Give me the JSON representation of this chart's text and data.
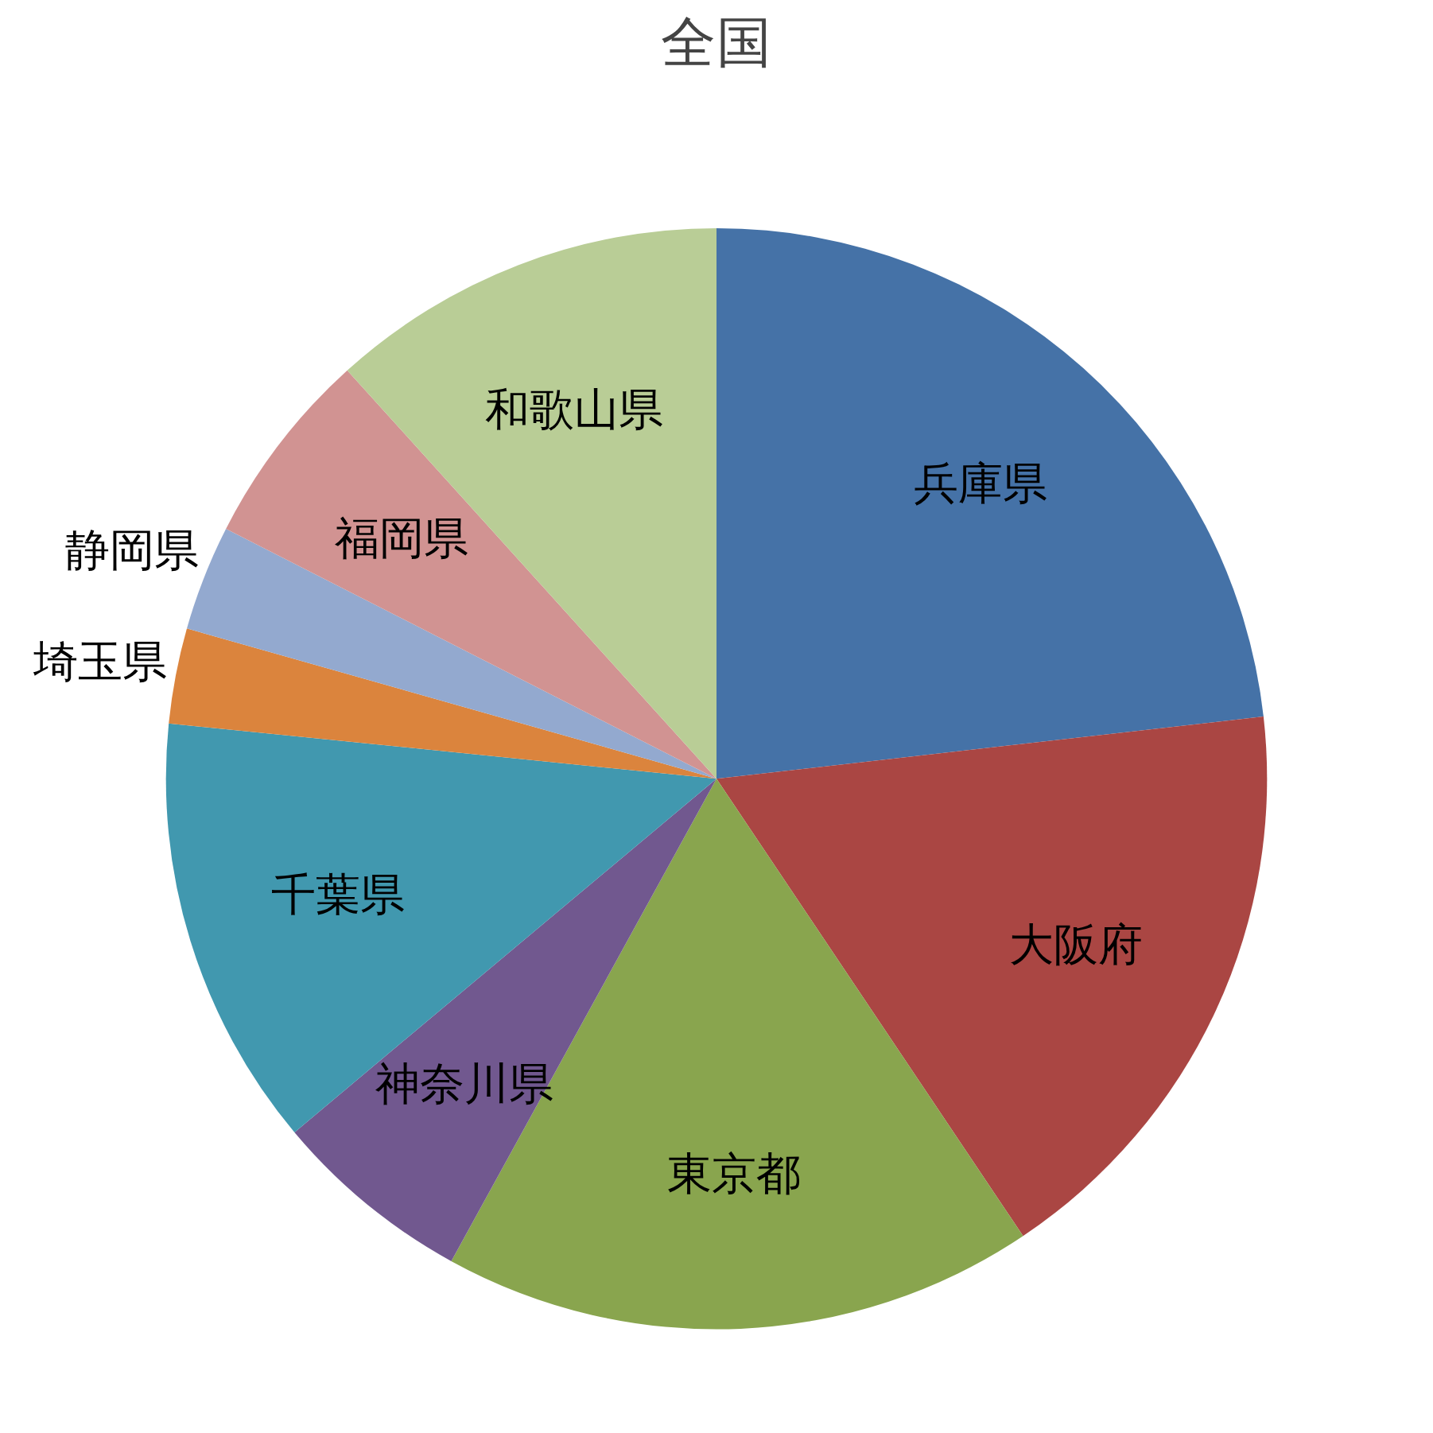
{
  "chart_data": {
    "type": "pie",
    "title": "全国",
    "categories": [
      "兵庫県",
      "大阪府",
      "東京都",
      "神奈川県",
      "千葉県",
      "埼玉県",
      "静岡県",
      "福岡県",
      "和歌山県"
    ],
    "values": [
      23.2,
      17.4,
      17.4,
      5.9,
      12.7,
      2.8,
      3.1,
      5.8,
      11.7
    ],
    "colors": [
      "#4572a7",
      "#aa4643",
      "#89a54e",
      "#71588f",
      "#4198af",
      "#db843d",
      "#93a9cf",
      "#d19392",
      "#b9cd96"
    ]
  }
}
